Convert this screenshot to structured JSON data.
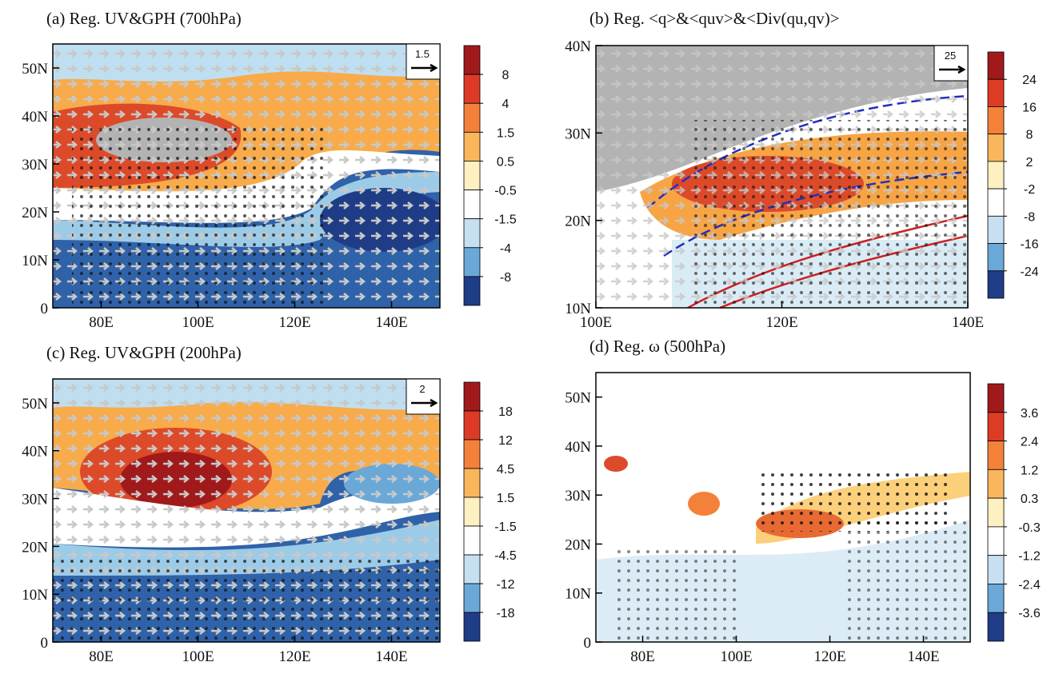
{
  "chart_data": [
    {
      "type": "map",
      "title": "(a) Reg. UV&GPH (700hPa)",
      "xlim": [
        70,
        150
      ],
      "ylim": [
        0,
        55
      ],
      "xticks": [
        {
          "value": 80,
          "label": "80E"
        },
        {
          "value": 100,
          "label": "100E"
        },
        {
          "value": 120,
          "label": "120E"
        },
        {
          "value": 140,
          "label": "140E"
        }
      ],
      "yticks": [
        0,
        {
          "value": 10,
          "label": "10N"
        },
        {
          "value": 20,
          "label": "20N"
        },
        {
          "value": 30,
          "label": "30N"
        },
        {
          "value": 40,
          "label": "40N"
        },
        {
          "value": 50,
          "label": "50N"
        }
      ],
      "colorbar": {
        "levels": [
          8,
          4,
          1.5,
          0.5,
          -0.5,
          -1.5,
          -4,
          -8
        ],
        "colors": [
          "#a01a1c",
          "#dd3b26",
          "#f4813a",
          "#f9b65c",
          "#fff0c2",
          "#ffffff",
          "#c6e0f1",
          "#6aa8d8",
          "#1f3d86"
        ]
      },
      "reference_vector": 1.5
    },
    {
      "type": "map",
      "title": "(b) Reg. <q>&<quv>&<Div(qu,qv)>",
      "xlim": [
        100,
        140
      ],
      "ylim": [
        10,
        40
      ],
      "xticks": [
        {
          "value": 100,
          "label": "100E"
        },
        {
          "value": 120,
          "label": "120E"
        },
        {
          "value": 140,
          "label": "140E"
        }
      ],
      "yticks": [
        {
          "value": 10,
          "label": "10N"
        },
        {
          "value": 20,
          "label": "20N"
        },
        {
          "value": 30,
          "label": "30N"
        },
        {
          "value": 40,
          "label": "40N"
        }
      ],
      "colorbar": {
        "levels": [
          24,
          16,
          8,
          2,
          -2,
          -8,
          -16,
          -24
        ],
        "colors": [
          "#a01a1c",
          "#dd3b26",
          "#f4813a",
          "#f9b65c",
          "#fff0c2",
          "#ffffff",
          "#c6e0f1",
          "#6aa8d8",
          "#1f3d86"
        ]
      },
      "reference_vector": 25
    },
    {
      "type": "map",
      "title": "(c) Reg. UV&GPH (200hPa)",
      "xlim": [
        70,
        150
      ],
      "ylim": [
        0,
        55
      ],
      "xticks": [
        {
          "value": 80,
          "label": "80E"
        },
        {
          "value": 100,
          "label": "100E"
        },
        {
          "value": 120,
          "label": "120E"
        },
        {
          "value": 140,
          "label": "140E"
        }
      ],
      "yticks": [
        0,
        {
          "value": 10,
          "label": "10N"
        },
        {
          "value": 20,
          "label": "20N"
        },
        {
          "value": 30,
          "label": "30N"
        },
        {
          "value": 40,
          "label": "40N"
        },
        {
          "value": 50,
          "label": "50N"
        }
      ],
      "colorbar": {
        "levels": [
          18,
          12,
          4.5,
          1.5,
          -1.5,
          -4.5,
          -12,
          -18
        ],
        "colors": [
          "#a01a1c",
          "#dd3b26",
          "#f4813a",
          "#f9b65c",
          "#fff0c2",
          "#ffffff",
          "#c6e0f1",
          "#6aa8d8",
          "#1f3d86"
        ]
      },
      "reference_vector": 2
    },
    {
      "type": "map",
      "title": "(d) Reg. ω (500hPa)",
      "xlim": [
        70,
        150
      ],
      "ylim": [
        0,
        55
      ],
      "xticks": [
        {
          "value": 80,
          "label": "80E"
        },
        {
          "value": 100,
          "label": "100E"
        },
        {
          "value": 120,
          "label": "120E"
        },
        {
          "value": 140,
          "label": "140E"
        }
      ],
      "yticks": [
        0,
        {
          "value": 10,
          "label": "10N"
        },
        {
          "value": 20,
          "label": "20N"
        },
        {
          "value": 30,
          "label": "30N"
        },
        {
          "value": 40,
          "label": "40N"
        },
        {
          "value": 50,
          "label": "50N"
        }
      ],
      "colorbar": {
        "levels": [
          3.6,
          2.4,
          1.2,
          0.3,
          -0.3,
          -1.2,
          -2.4,
          -3.6
        ],
        "colors": [
          "#a01a1c",
          "#dd3b26",
          "#f4813a",
          "#f9b65c",
          "#fff0c2",
          "#ffffff",
          "#c6e0f1",
          "#6aa8d8",
          "#1f3d86"
        ]
      }
    }
  ]
}
